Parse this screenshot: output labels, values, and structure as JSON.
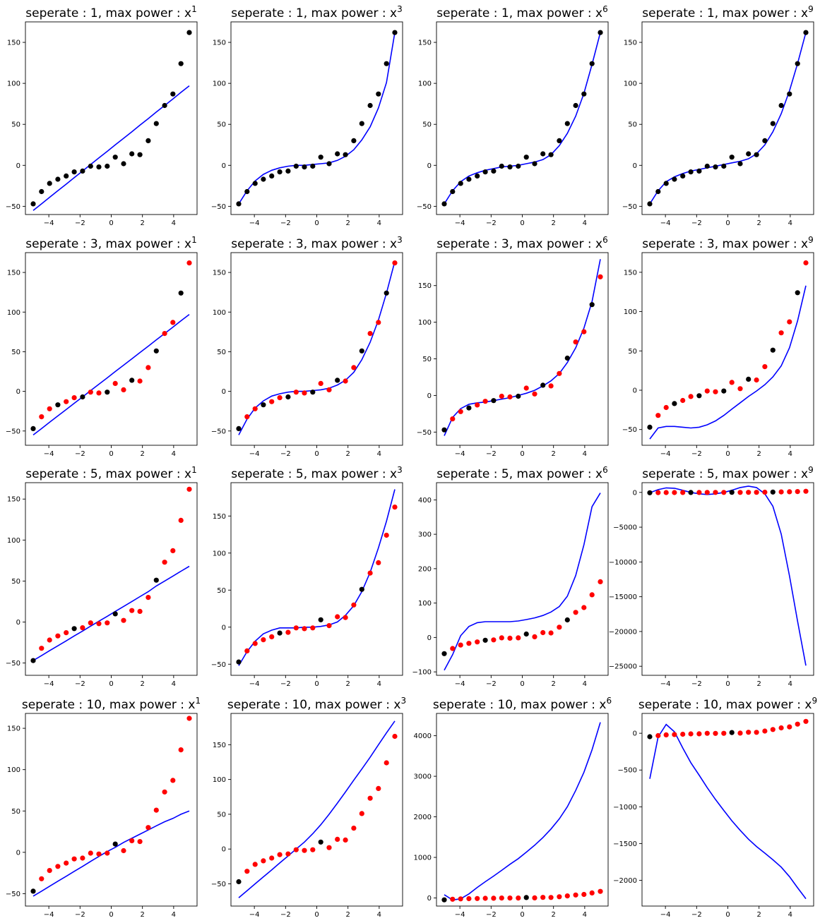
{
  "figure": {
    "background": "#ffffff",
    "colors": {
      "fit_line": "#0000ff",
      "train_point": "#000000",
      "test_point": "#ff0000",
      "axes": "#000000"
    },
    "x_ticks": [
      -4,
      -2,
      0,
      2,
      4
    ],
    "x_tick_labels": [
      "−4",
      "−2",
      "0",
      "2",
      "4"
    ],
    "x_points": [
      -5.0,
      -4.47,
      -3.95,
      -3.42,
      -2.89,
      -2.37,
      -1.84,
      -1.32,
      -0.79,
      -0.26,
      0.26,
      0.79,
      1.32,
      1.84,
      2.37,
      2.89,
      3.42,
      3.95,
      4.47,
      5.0
    ],
    "y_points": [
      -47,
      -32,
      -22,
      -17,
      -13,
      -8,
      -7,
      -1,
      -2,
      -1,
      10,
      2,
      14,
      13,
      30,
      51,
      73,
      87,
      124,
      162
    ],
    "x_curve": [
      -5.0,
      -4.47,
      -3.95,
      -3.42,
      -2.89,
      -2.37,
      -1.84,
      -1.32,
      -0.79,
      -0.26,
      0.26,
      0.79,
      1.32,
      1.84,
      2.37,
      2.89,
      3.42,
      3.95,
      4.47,
      5.0
    ]
  },
  "chart_data": [
    {
      "title_prefix": "seperate : 1, max power : x",
      "title_exp": "1",
      "type": "scatter",
      "ylim": [
        -60,
        175
      ],
      "y_ticks": [
        -50,
        0,
        50,
        100,
        150
      ],
      "y_tick_labels": [
        "−50",
        "0",
        "50",
        "100",
        "150"
      ],
      "train_mask": [
        1,
        1,
        1,
        1,
        1,
        1,
        1,
        1,
        1,
        1,
        1,
        1,
        1,
        1,
        1,
        1,
        1,
        1,
        1,
        1
      ],
      "fit_y": [
        -55,
        -47,
        -39,
        -31,
        -23,
        -15,
        -7,
        1,
        9,
        17,
        25,
        33,
        41,
        49,
        57,
        65,
        73,
        81,
        89,
        97
      ]
    },
    {
      "title_prefix": "seperate : 1, max power : x",
      "title_exp": "3",
      "type": "scatter",
      "ylim": [
        -60,
        175
      ],
      "y_ticks": [
        -50,
        0,
        50,
        100,
        150
      ],
      "y_tick_labels": [
        "−50",
        "0",
        "50",
        "100",
        "150"
      ],
      "train_mask": [
        1,
        1,
        1,
        1,
        1,
        1,
        1,
        1,
        1,
        1,
        1,
        1,
        1,
        1,
        1,
        1,
        1,
        1,
        1,
        1
      ],
      "fit_y": [
        -47,
        -31,
        -19,
        -11,
        -6,
        -3,
        -1,
        0,
        0,
        1,
        2,
        3,
        6,
        11,
        19,
        31,
        47,
        70,
        101,
        162
      ]
    },
    {
      "title_prefix": "seperate : 1, max power : x",
      "title_exp": "6",
      "type": "scatter",
      "ylim": [
        -60,
        175
      ],
      "y_ticks": [
        -50,
        0,
        50,
        100,
        150
      ],
      "y_tick_labels": [
        "−50",
        "0",
        "50",
        "100",
        "150"
      ],
      "train_mask": [
        1,
        1,
        1,
        1,
        1,
        1,
        1,
        1,
        1,
        1,
        1,
        1,
        1,
        1,
        1,
        1,
        1,
        1,
        1,
        1
      ],
      "fit_y": [
        -47,
        -31,
        -20,
        -13,
        -9,
        -6,
        -4,
        -2,
        -1,
        0,
        2,
        4,
        7,
        13,
        24,
        39,
        60,
        88,
        123,
        162
      ]
    },
    {
      "title_prefix": "seperate : 1, max power : x",
      "title_exp": "9",
      "type": "scatter",
      "ylim": [
        -60,
        175
      ],
      "y_ticks": [
        -50,
        0,
        50,
        100,
        150
      ],
      "y_tick_labels": [
        "−50",
        "0",
        "50",
        "100",
        "150"
      ],
      "train_mask": [
        1,
        1,
        1,
        1,
        1,
        1,
        1,
        1,
        1,
        1,
        1,
        1,
        1,
        1,
        1,
        1,
        1,
        1,
        1,
        1
      ],
      "fit_y": [
        -47,
        -31,
        -20,
        -14,
        -10,
        -7,
        -5,
        -3,
        -1,
        1,
        3,
        5,
        8,
        14,
        25,
        41,
        63,
        91,
        124,
        162
      ]
    },
    {
      "title_prefix": "seperate : 3, max power : x",
      "title_exp": "1",
      "type": "scatter",
      "ylim": [
        -68,
        175
      ],
      "y_ticks": [
        -50,
        0,
        50,
        100,
        150
      ],
      "y_tick_labels": [
        "−50",
        "0",
        "50",
        "100",
        "150"
      ],
      "train_mask": [
        1,
        0,
        0,
        1,
        0,
        0,
        1,
        0,
        0,
        1,
        0,
        0,
        1,
        0,
        0,
        1,
        0,
        0,
        1,
        0
      ],
      "fit_y": [
        -55,
        -47,
        -39,
        -31,
        -23,
        -15,
        -7,
        1,
        9,
        17,
        25,
        33,
        41,
        49,
        57,
        65,
        73,
        81,
        89,
        97
      ]
    },
    {
      "title_prefix": "seperate : 3, max power : x",
      "title_exp": "3",
      "type": "scatter",
      "ylim": [
        -68,
        175
      ],
      "y_ticks": [
        -50,
        0,
        50,
        100,
        150
      ],
      "y_tick_labels": [
        "−50",
        "0",
        "50",
        "100",
        "150"
      ],
      "train_mask": [
        1,
        0,
        0,
        1,
        0,
        0,
        1,
        0,
        0,
        1,
        0,
        0,
        1,
        0,
        0,
        1,
        0,
        0,
        1,
        0
      ],
      "fit_y": [
        -55,
        -35,
        -21,
        -12,
        -6,
        -3,
        -1,
        0,
        0,
        1,
        2,
        4,
        8,
        14,
        24,
        40,
        62,
        90,
        124,
        164
      ]
    },
    {
      "title_prefix": "seperate : 3, max power : x",
      "title_exp": "6",
      "type": "scatter",
      "ylim": [
        -68,
        195
      ],
      "y_ticks": [
        -50,
        0,
        50,
        100,
        150
      ],
      "y_tick_labels": [
        "−50",
        "0",
        "50",
        "100",
        "150"
      ],
      "train_mask": [
        1,
        0,
        0,
        1,
        0,
        0,
        1,
        0,
        0,
        1,
        0,
        0,
        1,
        0,
        0,
        1,
        0,
        0,
        1,
        0
      ],
      "fit_y": [
        -55,
        -30,
        -18,
        -12,
        -10,
        -9,
        -7,
        -5,
        -3,
        0,
        3,
        7,
        13,
        20,
        30,
        45,
        65,
        92,
        128,
        186
      ]
    },
    {
      "title_prefix": "seperate : 3, max power : x",
      "title_exp": "9",
      "type": "scatter",
      "ylim": [
        -70,
        175
      ],
      "y_ticks": [
        -50,
        0,
        50,
        100,
        150
      ],
      "y_tick_labels": [
        "−50",
        "0",
        "50",
        "100",
        "150"
      ],
      "train_mask": [
        1,
        0,
        0,
        1,
        0,
        0,
        1,
        0,
        0,
        1,
        0,
        0,
        1,
        0,
        0,
        1,
        0,
        0,
        1,
        0
      ],
      "fit_y": [
        -62,
        -48,
        -46,
        -46,
        -47,
        -48,
        -47,
        -44,
        -39,
        -32,
        -24,
        -16,
        -8,
        -1,
        7,
        17,
        31,
        54,
        88,
        133
      ]
    },
    {
      "title_prefix": "seperate : 5, max power : x",
      "title_exp": "1",
      "type": "scatter",
      "ylim": [
        -65,
        170
      ],
      "y_ticks": [
        -50,
        0,
        50,
        100,
        150
      ],
      "y_tick_labels": [
        "−50",
        "0",
        "50",
        "100",
        "150"
      ],
      "train_mask": [
        1,
        0,
        0,
        0,
        0,
        1,
        0,
        0,
        0,
        0,
        1,
        0,
        0,
        0,
        0,
        1,
        0,
        0,
        0,
        0
      ],
      "fit_y": [
        -47,
        -41,
        -35,
        -29,
        -23,
        -17,
        -11,
        -5,
        1,
        7,
        13,
        19,
        25,
        31,
        37,
        44,
        50,
        56,
        62,
        68
      ]
    },
    {
      "title_prefix": "seperate : 5, max power : x",
      "title_exp": "3",
      "type": "scatter",
      "ylim": [
        -65,
        195
      ],
      "y_ticks": [
        -50,
        0,
        50,
        100,
        150
      ],
      "y_tick_labels": [
        "−50",
        "0",
        "50",
        "100",
        "150"
      ],
      "train_mask": [
        1,
        0,
        0,
        0,
        0,
        1,
        0,
        0,
        0,
        0,
        1,
        0,
        0,
        0,
        0,
        1,
        0,
        0,
        0,
        0
      ],
      "fit_y": [
        -52,
        -33,
        -19,
        -9,
        -4,
        -1,
        -1,
        -1,
        0,
        0,
        1,
        3,
        7,
        16,
        29,
        48,
        74,
        107,
        143,
        186
      ]
    },
    {
      "title_prefix": "seperate : 5, max power : x",
      "title_exp": "6",
      "type": "scatter",
      "ylim": [
        -110,
        450
      ],
      "y_ticks": [
        -100,
        0,
        100,
        200,
        300,
        400
      ],
      "y_tick_labels": [
        "−100",
        "0",
        "100",
        "200",
        "300",
        "400"
      ],
      "train_mask": [
        1,
        0,
        0,
        0,
        0,
        1,
        0,
        0,
        0,
        0,
        1,
        0,
        0,
        0,
        0,
        1,
        0,
        0,
        0,
        0
      ],
      "fit_y": [
        -95,
        -50,
        5,
        32,
        43,
        46,
        46,
        46,
        46,
        48,
        52,
        57,
        64,
        74,
        90,
        120,
        180,
        270,
        380,
        420
      ]
    },
    {
      "title_prefix": "seperate : 5, max power : x",
      "title_exp": "9",
      "type": "scatter",
      "ylim": [
        -26300,
        1400
      ],
      "y_ticks": [
        -25000,
        -20000,
        -15000,
        -10000,
        -5000,
        0
      ],
      "y_tick_labels": [
        "−25000",
        "−20000",
        "−15000",
        "−10000",
        "−5000",
        "0"
      ],
      "train_mask": [
        1,
        0,
        0,
        0,
        0,
        1,
        0,
        0,
        0,
        0,
        1,
        0,
        0,
        0,
        0,
        1,
        0,
        0,
        0,
        0
      ],
      "fit_y": [
        -47,
        400,
        650,
        600,
        300,
        0,
        -200,
        -300,
        -200,
        0,
        300,
        700,
        900,
        700,
        -200,
        -2000,
        -6000,
        -12000,
        -18500,
        -24900
      ]
    },
    {
      "title_prefix": "seperate : 10, max power : x",
      "title_exp": "1",
      "type": "scatter",
      "ylim": [
        -65,
        168
      ],
      "y_ticks": [
        -50,
        0,
        50,
        100,
        150
      ],
      "y_tick_labels": [
        "−50",
        "0",
        "50",
        "100",
        "150"
      ],
      "train_mask": [
        1,
        0,
        0,
        0,
        0,
        0,
        0,
        0,
        0,
        0,
        1,
        0,
        0,
        0,
        0,
        0,
        0,
        0,
        0,
        0
      ],
      "fit_y": [
        -53,
        -47,
        -41,
        -35,
        -29,
        -23,
        -17,
        -11,
        -5,
        1,
        6,
        12,
        17,
        22,
        27,
        32,
        37,
        41,
        46,
        50
      ]
    },
    {
      "title_prefix": "seperate : 10, max power : x",
      "title_exp": "3",
      "type": "scatter",
      "ylim": [
        -82,
        195
      ],
      "y_ticks": [
        -50,
        0,
        50,
        100,
        150
      ],
      "y_tick_labels": [
        "−50",
        "0",
        "50",
        "100",
        "150"
      ],
      "train_mask": [
        1,
        0,
        0,
        0,
        0,
        0,
        0,
        0,
        0,
        0,
        1,
        0,
        0,
        0,
        0,
        0,
        0,
        0,
        0,
        0
      ],
      "fit_y": [
        -70,
        -60,
        -50,
        -40,
        -30,
        -20,
        -10,
        0,
        10,
        22,
        35,
        50,
        66,
        82,
        99,
        115,
        132,
        150,
        167,
        184
      ]
    },
    {
      "title_prefix": "seperate : 10, max power : x",
      "title_exp": "6",
      "type": "scatter",
      "ylim": [
        -200,
        4550
      ],
      "y_ticks": [
        0,
        1000,
        2000,
        3000,
        4000
      ],
      "y_tick_labels": [
        "0",
        "1000",
        "2000",
        "3000",
        "4000"
      ],
      "train_mask": [
        1,
        0,
        0,
        0,
        0,
        0,
        0,
        0,
        0,
        0,
        1,
        0,
        0,
        0,
        0,
        0,
        0,
        0,
        0,
        0
      ],
      "fit_y": [
        80,
        -50,
        -20,
        100,
        260,
        400,
        540,
        680,
        830,
        970,
        1130,
        1300,
        1490,
        1700,
        1950,
        2250,
        2650,
        3100,
        3650,
        4330
      ]
    },
    {
      "title_prefix": "seperate : 10, max power : x",
      "title_exp": "9",
      "type": "scatter",
      "ylim": [
        -2350,
        270
      ],
      "y_ticks": [
        -2000,
        -1500,
        -1000,
        -500,
        0
      ],
      "y_tick_labels": [
        "−2000",
        "−1500",
        "−1000",
        "−500",
        "0"
      ],
      "train_mask": [
        1,
        0,
        0,
        0,
        0,
        0,
        0,
        0,
        0,
        0,
        1,
        0,
        0,
        0,
        0,
        0,
        0,
        0,
        0,
        0
      ],
      "fit_y": [
        -620,
        -50,
        120,
        20,
        -200,
        -400,
        -570,
        -740,
        -900,
        -1050,
        -1190,
        -1320,
        -1440,
        -1540,
        -1630,
        -1720,
        -1820,
        -1950,
        -2100,
        -2250
      ]
    }
  ]
}
